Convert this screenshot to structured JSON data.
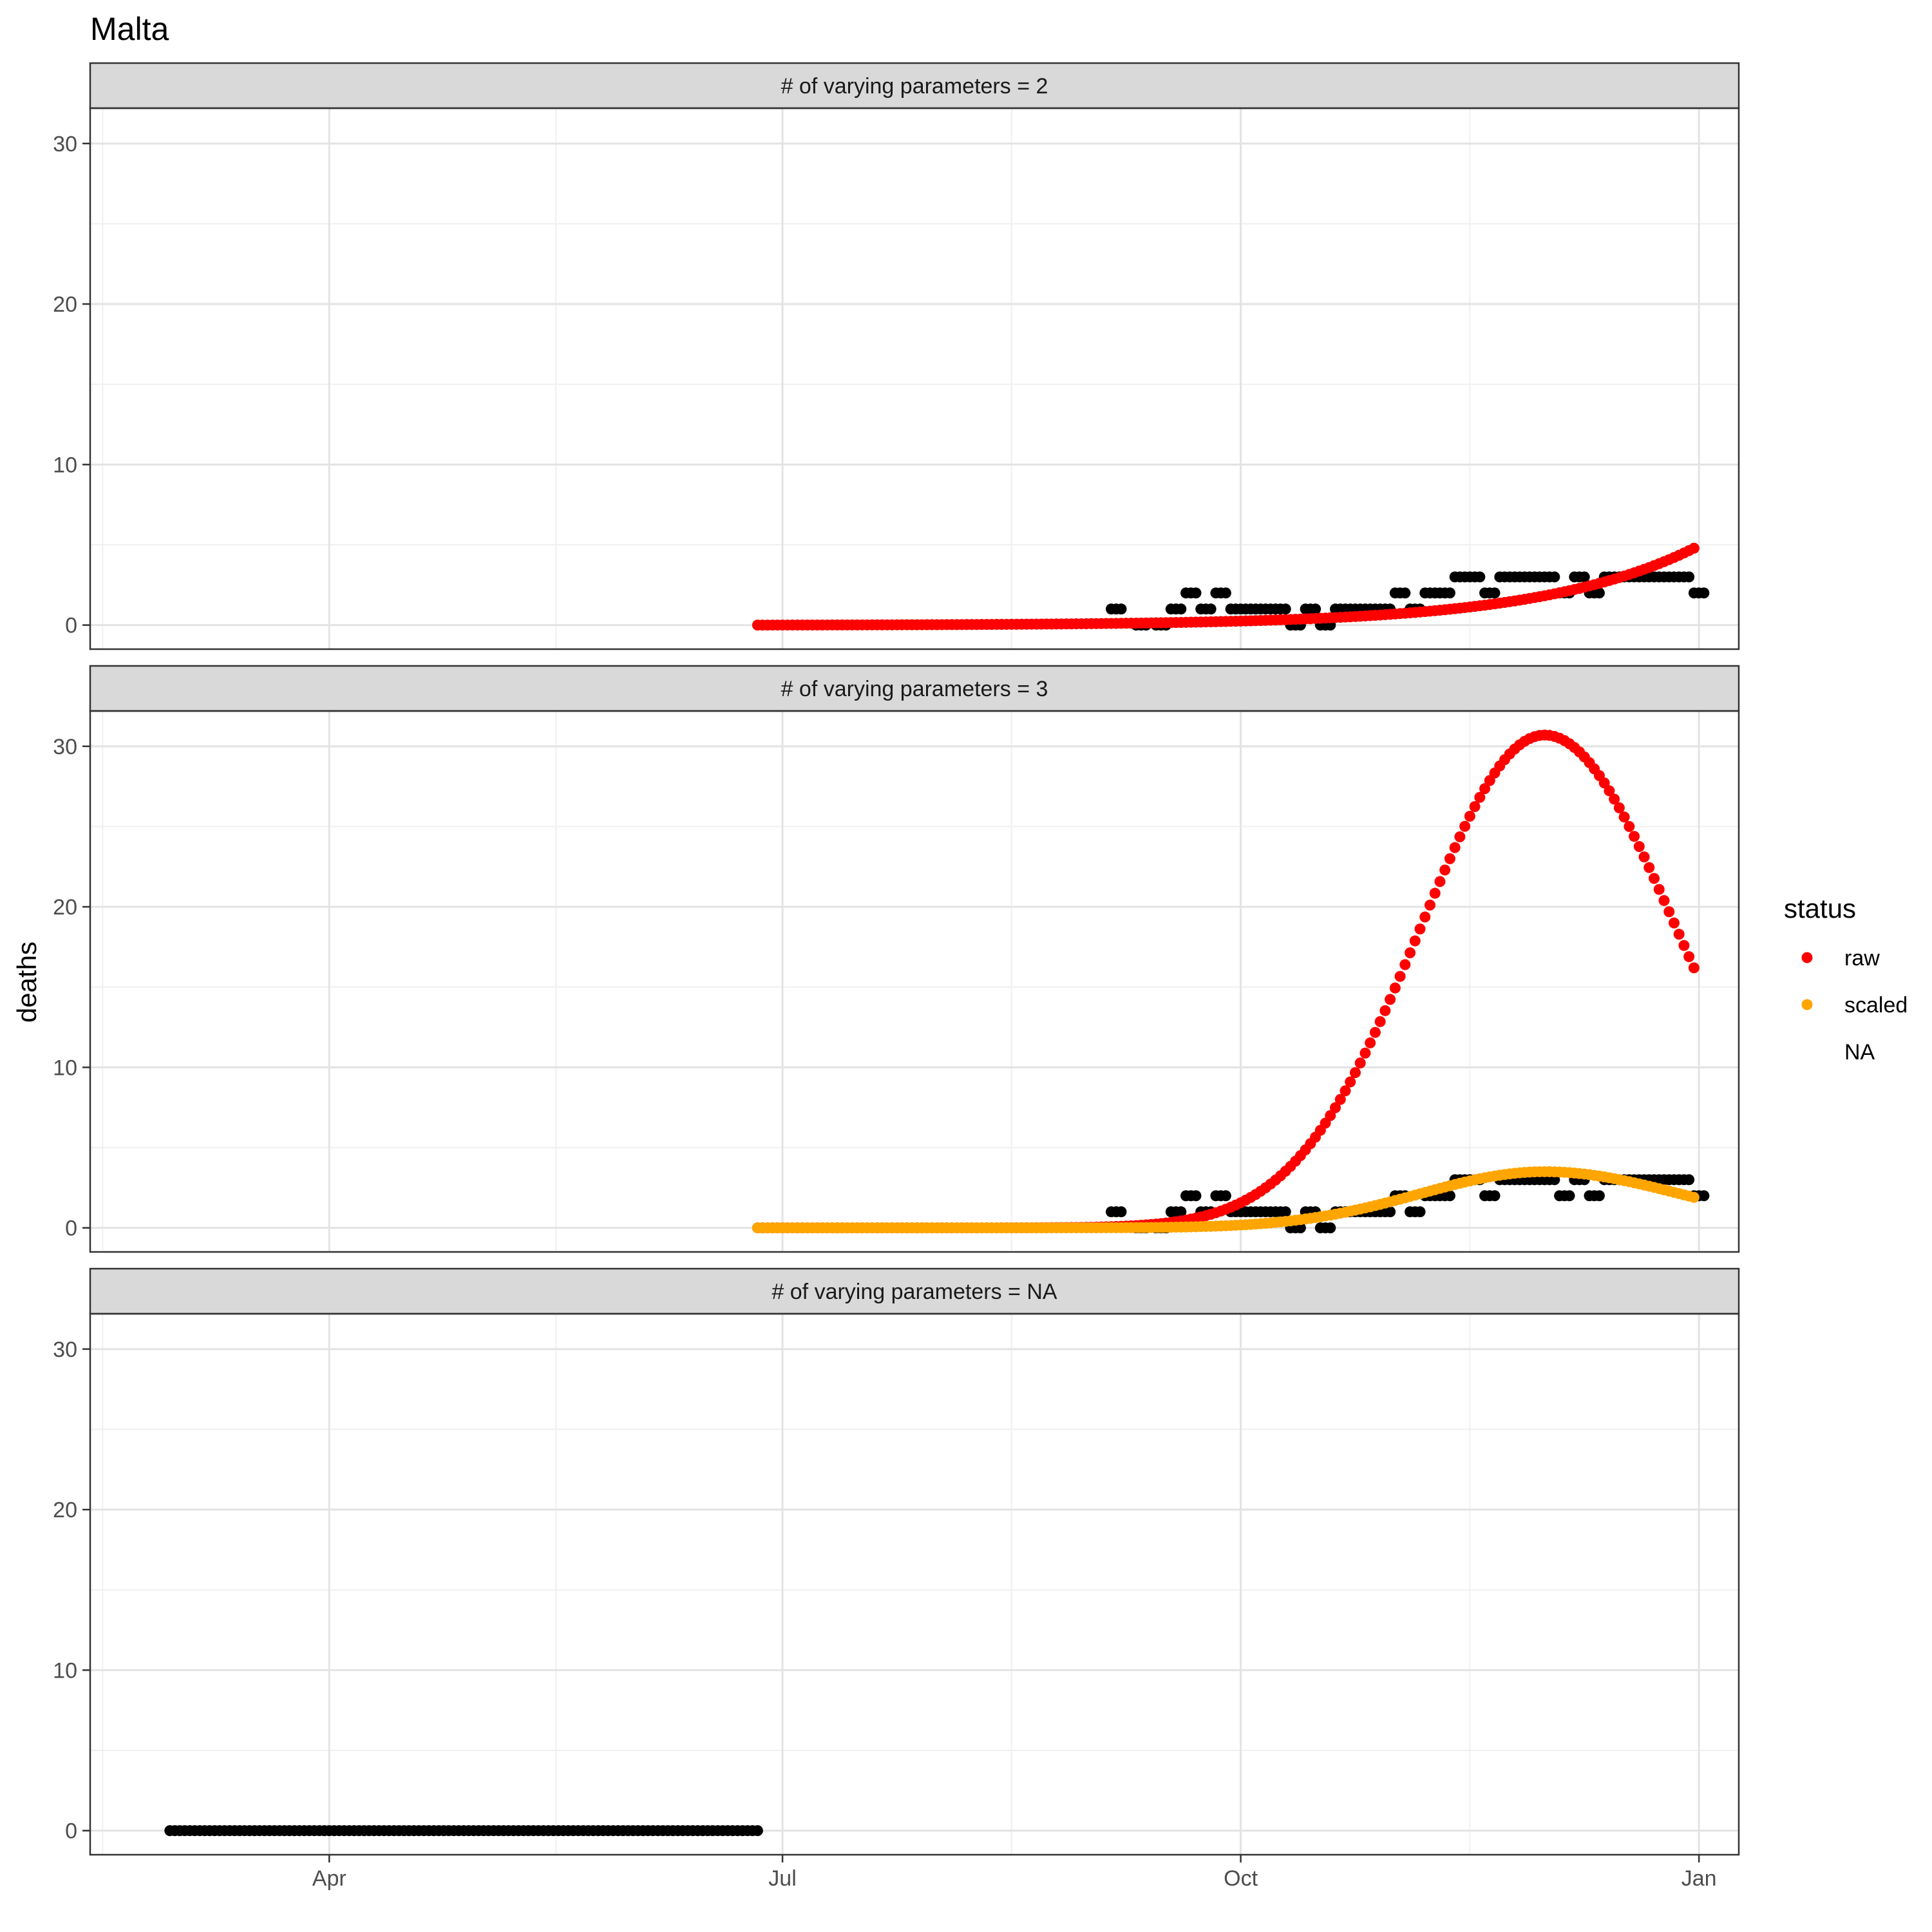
{
  "chart_data": {
    "type": "scatter",
    "title": "Malta",
    "ylabel": "deaths",
    "xlabel": "",
    "x_axis": {
      "type": "date",
      "range": [
        "2020-02-13",
        "2021-01-09"
      ],
      "ticks": [
        {
          "date": "2020-04-01",
          "label": "Apr"
        },
        {
          "date": "2020-07-01",
          "label": "Jul"
        },
        {
          "date": "2020-10-01",
          "label": "Oct"
        },
        {
          "date": "2021-01-01",
          "label": "Jan"
        }
      ]
    },
    "y_axis": {
      "range": [
        -1.5,
        32.2
      ],
      "ticks": [
        0,
        10,
        20,
        30
      ]
    },
    "grid": true,
    "legend": {
      "title": "status",
      "placement": "right",
      "entries": [
        {
          "label": "raw",
          "color": "#ff0000"
        },
        {
          "label": "scaled",
          "color": "#ffa500"
        },
        {
          "label": "NA",
          "color": "none"
        }
      ]
    },
    "observed_color": "#000000",
    "facets": [
      {
        "label": "# of varying parameters = 2",
        "observed": {
          "dates": [
            "2020-09-05",
            "2020-09-10",
            "2020-09-14",
            "2020-09-17",
            "2020-09-20",
            "2020-09-23",
            "2020-09-26",
            "2020-09-29",
            "2020-10-02",
            "2020-10-05",
            "2020-10-08",
            "2020-10-11",
            "2020-10-14",
            "2020-10-17",
            "2020-10-20",
            "2020-10-23",
            "2020-10-26",
            "2020-10-29",
            "2020-11-01",
            "2020-11-04",
            "2020-11-07",
            "2020-11-10",
            "2020-11-13",
            "2020-11-16",
            "2020-11-19",
            "2020-11-22",
            "2020-11-25",
            "2020-11-28",
            "2020-12-01",
            "2020-12-04",
            "2020-12-07",
            "2020-12-10",
            "2020-12-13",
            "2020-12-16",
            "2020-12-19",
            "2020-12-22",
            "2020-12-25",
            "2020-12-28",
            "2020-12-31"
          ],
          "values": [
            1,
            0,
            0,
            1,
            2,
            1,
            2,
            1,
            1,
            1,
            1,
            0,
            1,
            0,
            1,
            1,
            1,
            1,
            2,
            1,
            2,
            2,
            3,
            3,
            2,
            3,
            3,
            3,
            3,
            2,
            3,
            2,
            3,
            3,
            3,
            3,
            3,
            3,
            2
          ]
        },
        "series": [
          {
            "name": "raw",
            "color": "#ff0000",
            "x_start": "2020-06-26",
            "x_end": "2020-12-31",
            "curve": "exponential",
            "y_start": 0.0,
            "y_end": 4.8
          }
        ]
      },
      {
        "label": "# of varying parameters = 3",
        "observed": {
          "dates": [
            "2020-09-05",
            "2020-09-10",
            "2020-09-14",
            "2020-09-17",
            "2020-09-20",
            "2020-09-23",
            "2020-09-26",
            "2020-09-29",
            "2020-10-02",
            "2020-10-05",
            "2020-10-08",
            "2020-10-11",
            "2020-10-14",
            "2020-10-17",
            "2020-10-20",
            "2020-10-23",
            "2020-10-26",
            "2020-10-29",
            "2020-11-01",
            "2020-11-04",
            "2020-11-07",
            "2020-11-10",
            "2020-11-13",
            "2020-11-16",
            "2020-11-19",
            "2020-11-22",
            "2020-11-25",
            "2020-11-28",
            "2020-12-01",
            "2020-12-04",
            "2020-12-07",
            "2020-12-10",
            "2020-12-13",
            "2020-12-16",
            "2020-12-19",
            "2020-12-22",
            "2020-12-25",
            "2020-12-28",
            "2020-12-31"
          ],
          "values": [
            1,
            0,
            0,
            1,
            2,
            1,
            2,
            1,
            1,
            1,
            1,
            0,
            1,
            0,
            1,
            1,
            1,
            1,
            2,
            1,
            2,
            2,
            3,
            3,
            2,
            3,
            3,
            3,
            3,
            2,
            3,
            2,
            3,
            3,
            3,
            3,
            3,
            3,
            2
          ]
        },
        "series": [
          {
            "name": "raw",
            "color": "#ff0000",
            "x_start": "2020-06-26",
            "x_end": "2020-12-31",
            "curve": "gaussian",
            "peak_date": "2020-12-01",
            "peak_value": 30.7,
            "sigma_days": 25,
            "y_end": 16.2
          },
          {
            "name": "scaled",
            "color": "#ffa500",
            "x_start": "2020-06-26",
            "x_end": "2020-12-31",
            "curve": "gaussian",
            "peak_date": "2020-12-01",
            "peak_value": 3.5,
            "sigma_days": 25,
            "y_end": 1.9
          }
        ]
      },
      {
        "label": "# of varying parameters = NA",
        "observed": {
          "date_range": [
            "2020-02-29",
            "2020-06-26"
          ],
          "value": 0
        },
        "series": []
      }
    ]
  }
}
